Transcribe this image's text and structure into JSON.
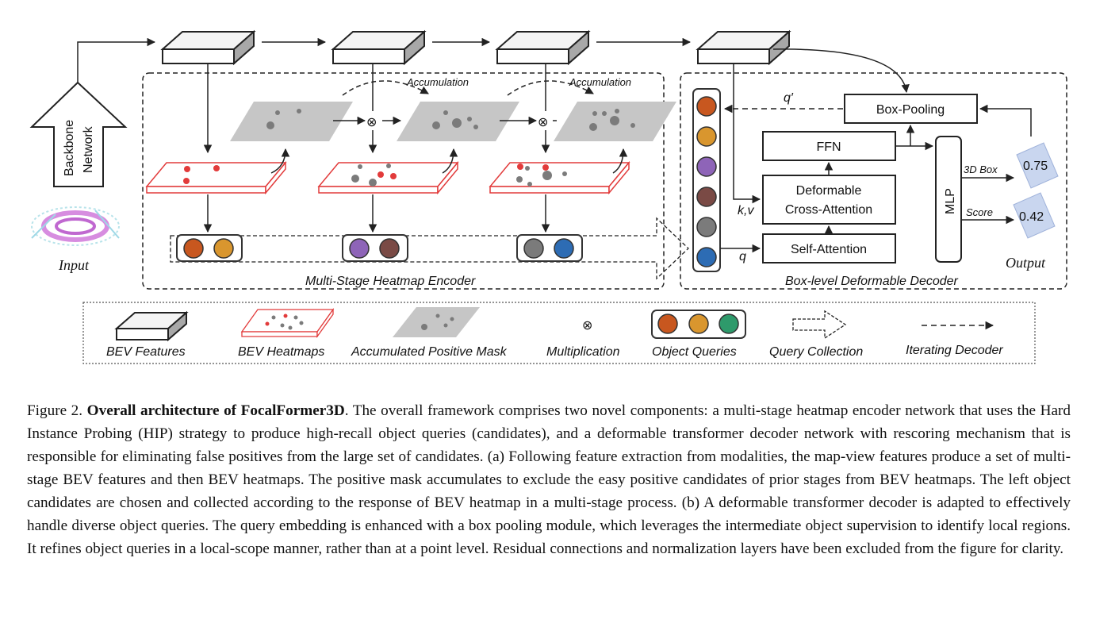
{
  "diagram": {
    "backbone_label_line1": "Backbone",
    "backbone_label_line2": "Network",
    "input_label": "Input",
    "accumulation_label_1": "Accumulation",
    "accumulation_label_2": "Accumulation",
    "encoder_label": "Multi-Stage Heatmap Encoder",
    "decoder_label": "Box-level Deformable Decoder",
    "box_pooling": "Box-Pooling",
    "ffn": "FFN",
    "deform_line1": "Deformable",
    "deform_line2": "Cross-Attention",
    "self_attention": "Self-Attention",
    "mlp": "MLP",
    "q_prime": "q′",
    "kv": "k,v",
    "q": "q",
    "box3d": "3D Box",
    "score": "Score",
    "val_box": "0.75",
    "val_score": "0.42",
    "output_label": "Output",
    "multiply_symbol": "⊗",
    "query_colors": {
      "orange_red": "#c8571f",
      "amber": "#d9962e",
      "purple": "#8e64b8",
      "brown": "#7a4a45",
      "gray": "#7b7b7b",
      "blue": "#2d6cb4",
      "green": "#2e9a6b"
    }
  },
  "legend": {
    "bev_features": "BEV Features",
    "bev_heatmaps": "BEV Heatmaps",
    "accumulated_mask": "Accumulated Positive Mask",
    "multiplication": "Multiplication",
    "object_queries": "Object Queries",
    "query_collection": "Query Collection",
    "iterating_decoder": "Iterating Decoder"
  },
  "caption": {
    "prefix": "Figure 2.",
    "title": "Overall architecture of FocalFormer3D",
    "body": ". The overall framework comprises two novel components: a multi-stage heatmap encoder network that uses the Hard Instance Probing (HIP) strategy to produce high-recall object queries (candidates), and a deformable transformer decoder network with rescoring mechanism that is responsible for eliminating false positives from the large set of candidates. (a) Following feature extraction from modalities, the map-view features produce a set of multi-stage BEV features and then BEV heatmaps. The positive mask accumulates to exclude the easy positive candidates of prior stages from BEV heatmaps. The left object candidates are chosen and collected according to the response of BEV heatmap in a multi-stage process.  (b) A deformable transformer decoder is adapted to effectively handle diverse object queries. The query embedding is enhanced with a box pooling module, which leverages the intermediate object supervision to identify local regions.  It refines object queries in a local-scope manner, rather than at a point level. Residual connections and normalization layers have been excluded from the figure for clarity."
  }
}
